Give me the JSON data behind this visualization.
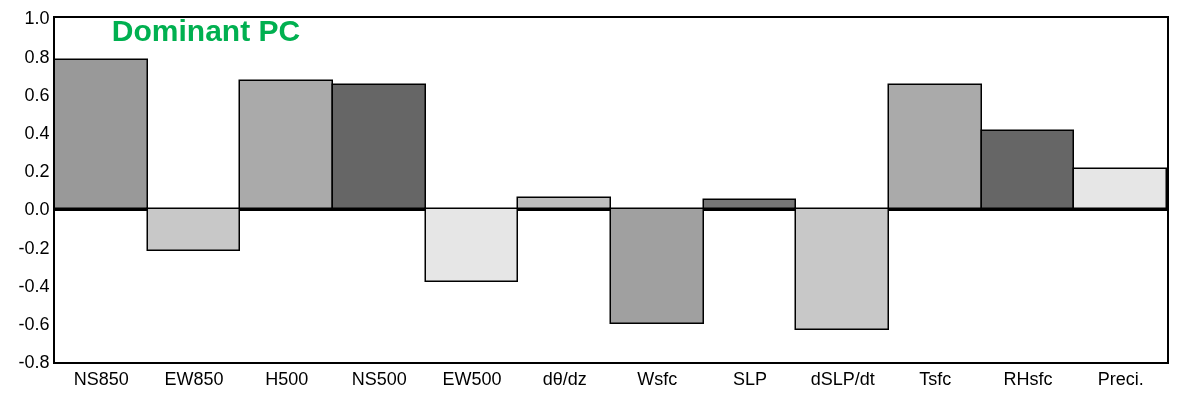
{
  "chart_data": {
    "type": "bar",
    "title": "Dominant PC",
    "categories": [
      "NS850",
      "EW850",
      "H500",
      "NS500",
      "EW500",
      "dθ/dz",
      "Wsfc",
      "SLP",
      "dSLP/dt",
      "Tsfc",
      "RHsfc",
      "Preci."
    ],
    "values": [
      0.78,
      -0.22,
      0.67,
      0.65,
      -0.38,
      0.06,
      -0.6,
      0.05,
      -0.63,
      0.65,
      0.41,
      0.21
    ],
    "colors": [
      "#999999",
      "#c8c8c8",
      "#aaaaaa",
      "#666666",
      "#e6e6e6",
      "#bfbfbf",
      "#a0a0a0",
      "#777777",
      "#c8c8c8",
      "#aaaaaa",
      "#666666",
      "#e6e6e6"
    ],
    "ylim": [
      -0.8,
      1.0
    ],
    "yticks": [
      {
        "value": -0.8,
        "label": "-0.8"
      },
      {
        "value": -0.6,
        "label": "-0.6"
      },
      {
        "value": -0.4,
        "label": "-0.4"
      },
      {
        "value": -0.2,
        "label": "-0.2"
      },
      {
        "value": 0,
        "label": "0.0"
      },
      {
        "value": 0.2,
        "label": "0.2"
      },
      {
        "value": 0.4,
        "label": "0.4"
      },
      {
        "value": 0.6,
        "label": "0.6"
      },
      {
        "value": 0.8,
        "label": "0.8"
      },
      {
        "value": 1.0,
        "label": "1.0"
      }
    ]
  }
}
